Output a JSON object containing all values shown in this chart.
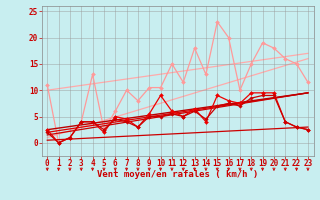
{
  "background_color": "#c8eef0",
  "grid_color": "#999999",
  "xlabel": "Vent moyen/en rafales ( km/h )",
  "xlabel_color": "#cc0000",
  "xlabel_fontsize": 6.5,
  "tick_color": "#cc0000",
  "tick_fontsize": 5.5,
  "ylim": [
    -2.5,
    26
  ],
  "xlim": [
    -0.5,
    23.5
  ],
  "yticks": [
    0,
    5,
    10,
    15,
    20,
    25
  ],
  "xticks": [
    0,
    1,
    2,
    3,
    4,
    5,
    6,
    7,
    8,
    9,
    10,
    11,
    12,
    13,
    14,
    15,
    16,
    17,
    18,
    19,
    20,
    21,
    22,
    23
  ],
  "arrow_color": "#cc0000",
  "series": [
    {
      "name": "light_pink_jagged",
      "x": [
        0,
        1,
        2,
        3,
        4,
        5,
        6,
        7,
        8,
        9,
        10,
        11,
        12,
        13,
        14,
        15,
        16,
        17,
        18,
        19,
        20,
        21,
        22,
        23
      ],
      "y": [
        11,
        0,
        1,
        4,
        13,
        2.5,
        6,
        10,
        8,
        10.5,
        10.5,
        15,
        11.5,
        18,
        13,
        23,
        20,
        10,
        15,
        19,
        18,
        16,
        15,
        11.5
      ],
      "color": "#ff9999",
      "linewidth": 0.9,
      "marker": "D",
      "markersize": 2.0,
      "zorder": 2
    },
    {
      "name": "light_pink_trend_low",
      "x": [
        0,
        23
      ],
      "y": [
        1,
        16
      ],
      "color": "#ffaaaa",
      "linewidth": 0.9,
      "marker": null,
      "zorder": 1
    },
    {
      "name": "light_pink_trend_high",
      "x": [
        0,
        23
      ],
      "y": [
        10,
        17
      ],
      "color": "#ffaaaa",
      "linewidth": 0.9,
      "marker": null,
      "zorder": 1
    },
    {
      "name": "red_line_main",
      "x": [
        0,
        1,
        2,
        3,
        4,
        5,
        6,
        7,
        8,
        9,
        10,
        11,
        12,
        13,
        14,
        15,
        16,
        17,
        18,
        19,
        20,
        21,
        22,
        23
      ],
      "y": [
        2.5,
        0,
        1,
        4,
        4,
        2,
        5,
        4.5,
        3,
        5.5,
        9,
        6,
        5,
        6.5,
        4,
        9,
        8,
        7.5,
        9.5,
        9.5,
        9.5,
        4,
        3,
        2.5
      ],
      "color": "#ee0000",
      "linewidth": 0.9,
      "marker": "D",
      "markersize": 2.0,
      "zorder": 4
    },
    {
      "name": "red_line2",
      "x": [
        0,
        1,
        2,
        3,
        4,
        5,
        6,
        7,
        8,
        9,
        10,
        11,
        12,
        13,
        14,
        15,
        16,
        17,
        18,
        19,
        20,
        21,
        22,
        23
      ],
      "y": [
        2,
        0,
        1,
        4,
        4,
        2.5,
        4.5,
        4,
        3,
        5,
        5,
        5.5,
        5,
        6,
        4.5,
        7,
        7.5,
        7,
        8.5,
        9,
        9,
        4,
        3,
        2.5
      ],
      "color": "#cc0000",
      "linewidth": 0.9,
      "marker": "D",
      "markersize": 1.8,
      "zorder": 4
    },
    {
      "name": "red_trend_low",
      "x": [
        0,
        23
      ],
      "y": [
        0.5,
        3
      ],
      "color": "#cc0000",
      "linewidth": 0.9,
      "marker": null,
      "zorder": 3
    },
    {
      "name": "red_trend_mid1",
      "x": [
        0,
        23
      ],
      "y": [
        1.5,
        9.5
      ],
      "color": "#cc0000",
      "linewidth": 0.9,
      "marker": null,
      "zorder": 3
    },
    {
      "name": "red_trend_mid2",
      "x": [
        0,
        23
      ],
      "y": [
        2,
        9.5
      ],
      "color": "#dd0000",
      "linewidth": 0.9,
      "marker": null,
      "zorder": 3
    },
    {
      "name": "red_trend_mid3",
      "x": [
        0,
        23
      ],
      "y": [
        2.5,
        9.5
      ],
      "color": "#bb0000",
      "linewidth": 1.0,
      "marker": null,
      "zorder": 3
    }
  ]
}
